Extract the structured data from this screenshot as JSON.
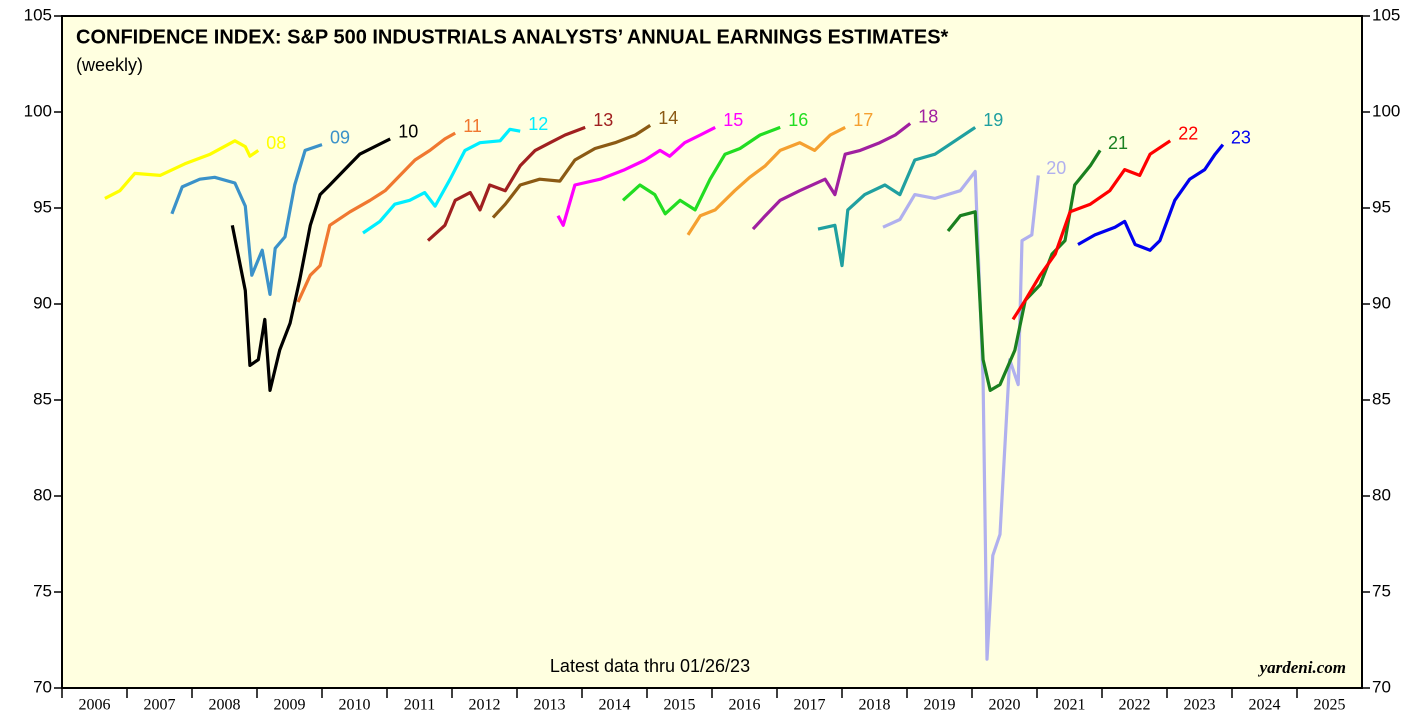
{
  "chart_data": {
    "type": "line",
    "title": "CONFIDENCE INDEX: S&P 500 INDUSTRIALS ANALYSTS’ ANNUAL EARNINGS ESTIMATES*",
    "subtitle": "(weekly)",
    "annotations": [
      "Latest data thru 01/26/23",
      "yardeni.com"
    ],
    "xlim": [
      2006,
      2026
    ],
    "xticks": [
      2006,
      2007,
      2008,
      2009,
      2010,
      2011,
      2012,
      2013,
      2014,
      2015,
      2016,
      2017,
      2018,
      2019,
      2020,
      2021,
      2022,
      2023,
      2024,
      2025
    ],
    "ylim": [
      70,
      105
    ],
    "yticks": [
      70,
      75,
      80,
      85,
      90,
      95,
      100,
      105
    ],
    "series": [
      {
        "name": "08",
        "color": "#ffff00",
        "x": [
          2006.66,
          2006.89,
          2007.12,
          2007.51,
          2007.89,
          2008.28,
          2008.66,
          2008.82,
          2008.89,
          2009.02
        ],
        "values": [
          95.5,
          95.9,
          96.8,
          96.7,
          97.3,
          97.8,
          98.5,
          98.2,
          97.7,
          98.0
        ]
      },
      {
        "name": "09",
        "color": "#3b92c9",
        "x": [
          2007.69,
          2007.85,
          2008.12,
          2008.35,
          2008.66,
          2008.82,
          2008.92,
          2009.08,
          2009.2,
          2009.28,
          2009.43,
          2009.58,
          2009.74,
          2010.0
        ],
        "values": [
          94.7,
          96.1,
          96.5,
          96.6,
          96.3,
          95.1,
          91.5,
          92.8,
          90.5,
          92.9,
          93.5,
          96.2,
          98.0,
          98.3
        ]
      },
      {
        "name": "10",
        "color": "#000000",
        "x": [
          2008.62,
          2008.82,
          2008.89,
          2009.02,
          2009.12,
          2009.2,
          2009.35,
          2009.51,
          2009.66,
          2009.82,
          2009.97,
          2010.12,
          2010.35,
          2010.58,
          2011.05
        ],
        "values": [
          94.1,
          90.7,
          86.8,
          87.1,
          89.2,
          85.5,
          87.6,
          89.0,
          91.3,
          94.1,
          95.7,
          96.2,
          97.0,
          97.8,
          98.6
        ]
      },
      {
        "name": "11",
        "color": "#f07830",
        "x": [
          2009.63,
          2009.82,
          2009.97,
          2010.12,
          2010.43,
          2010.74,
          2010.97,
          2011.2,
          2011.43,
          2011.66,
          2011.89,
          2012.05
        ],
        "values": [
          90.1,
          91.5,
          92.0,
          94.1,
          94.8,
          95.4,
          95.9,
          96.7,
          97.5,
          98.0,
          98.6,
          98.9
        ]
      },
      {
        "name": "12",
        "color": "#00eeff",
        "x": [
          2010.63,
          2010.89,
          2011.12,
          2011.35,
          2011.58,
          2011.74,
          2011.97,
          2012.2,
          2012.43,
          2012.74,
          2012.89,
          2013.05
        ],
        "values": [
          93.7,
          94.3,
          95.2,
          95.4,
          95.8,
          95.1,
          96.5,
          98.0,
          98.4,
          98.5,
          99.1,
          99.0
        ]
      },
      {
        "name": "13",
        "color": "#a02020",
        "x": [
          2011.63,
          2011.89,
          2012.05,
          2012.28,
          2012.43,
          2012.58,
          2012.82,
          2013.05,
          2013.28,
          2013.51,
          2013.74,
          2014.05
        ],
        "values": [
          93.3,
          94.1,
          95.4,
          95.8,
          94.9,
          96.2,
          95.9,
          97.2,
          98.0,
          98.4,
          98.8,
          99.2
        ]
      },
      {
        "name": "14",
        "color": "#8b5a14",
        "x": [
          2012.63,
          2012.82,
          2013.05,
          2013.35,
          2013.66,
          2013.89,
          2014.2,
          2014.51,
          2014.82,
          2015.05
        ],
        "values": [
          94.5,
          95.2,
          96.2,
          96.5,
          96.4,
          97.5,
          98.1,
          98.4,
          98.8,
          99.3
        ]
      },
      {
        "name": "15",
        "color": "#ff00ff",
        "x": [
          2013.63,
          2013.71,
          2013.89,
          2014.28,
          2014.66,
          2014.97,
          2015.2,
          2015.35,
          2015.58,
          2015.82,
          2016.05
        ],
        "values": [
          94.6,
          94.1,
          96.2,
          96.5,
          97.0,
          97.5,
          98.0,
          97.7,
          98.4,
          98.8,
          99.2
        ]
      },
      {
        "name": "16",
        "color": "#22dd22",
        "x": [
          2014.63,
          2014.89,
          2015.12,
          2015.28,
          2015.51,
          2015.74,
          2015.97,
          2016.2,
          2016.43,
          2016.74,
          2017.05
        ],
        "values": [
          95.4,
          96.2,
          95.7,
          94.7,
          95.4,
          94.9,
          96.5,
          97.8,
          98.1,
          98.8,
          99.2
        ]
      },
      {
        "name": "17",
        "color": "#f5a030",
        "x": [
          2015.63,
          2015.82,
          2016.05,
          2016.35,
          2016.58,
          2016.82,
          2017.05,
          2017.35,
          2017.58,
          2017.82,
          2018.05
        ],
        "values": [
          93.6,
          94.6,
          94.9,
          95.9,
          96.6,
          97.2,
          98.0,
          98.4,
          98.0,
          98.8,
          99.2
        ]
      },
      {
        "name": "18",
        "color": "#a020a0",
        "x": [
          2016.63,
          2016.82,
          2017.05,
          2017.35,
          2017.74,
          2017.89,
          2018.05,
          2018.28,
          2018.58,
          2018.82,
          2019.05
        ],
        "values": [
          93.9,
          94.6,
          95.4,
          95.9,
          96.5,
          95.7,
          97.8,
          98.0,
          98.4,
          98.8,
          99.4
        ]
      },
      {
        "name": "19",
        "color": "#20a0a0",
        "x": [
          2017.63,
          2017.89,
          2018.0,
          2018.09,
          2018.35,
          2018.66,
          2018.89,
          2019.12,
          2019.43,
          2019.74,
          2020.05
        ],
        "values": [
          93.9,
          94.1,
          92.0,
          94.9,
          95.7,
          96.2,
          95.7,
          97.5,
          97.8,
          98.5,
          99.2
        ]
      },
      {
        "name": "20",
        "color": "#b0b0ee",
        "x": [
          2018.63,
          2018.89,
          2019.12,
          2019.43,
          2019.82,
          2020.05,
          2020.17,
          2020.23,
          2020.32,
          2020.43,
          2020.58,
          2020.71,
          2020.77,
          2020.92,
          2021.02
        ],
        "values": [
          94.0,
          94.4,
          95.7,
          95.5,
          95.9,
          96.9,
          86.0,
          71.5,
          76.9,
          78.0,
          87.1,
          85.8,
          93.3,
          93.6,
          96.7
        ]
      },
      {
        "name": "21",
        "color": "#1a8020",
        "x": [
          2019.63,
          2019.82,
          2020.05,
          2020.17,
          2020.28,
          2020.43,
          2020.66,
          2020.82,
          2021.05,
          2021.23,
          2021.43,
          2021.58,
          2021.82,
          2021.97
        ],
        "values": [
          93.8,
          94.6,
          94.8,
          87.1,
          85.5,
          85.8,
          87.6,
          90.2,
          91.0,
          92.6,
          93.3,
          96.2,
          97.2,
          98.0
        ]
      },
      {
        "name": "22",
        "color": "#ff0000",
        "x": [
          2020.63,
          2020.82,
          2021.05,
          2021.28,
          2021.51,
          2021.82,
          2022.12,
          2022.35,
          2022.58,
          2022.74,
          2023.05
        ],
        "values": [
          89.2,
          90.2,
          91.5,
          92.6,
          94.8,
          95.2,
          95.9,
          97.0,
          96.7,
          97.8,
          98.5
        ]
      },
      {
        "name": "23",
        "color": "#0000ee",
        "x": [
          2021.63,
          2021.89,
          2022.2,
          2022.35,
          2022.51,
          2022.74,
          2022.89,
          2023.12,
          2023.35,
          2023.58,
          2023.74,
          2023.86
        ],
        "values": [
          93.1,
          93.6,
          94.0,
          94.3,
          93.1,
          92.8,
          93.3,
          95.4,
          96.5,
          97.0,
          97.8,
          98.3
        ]
      }
    ]
  }
}
